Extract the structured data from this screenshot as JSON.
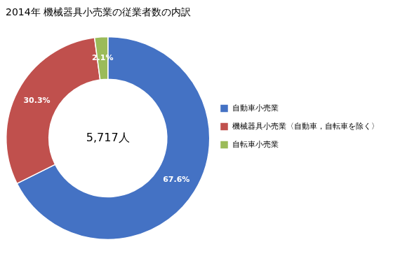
{
  "chart_data": {
    "type": "doughnut",
    "title": "2014年 機械器具小売業の従業者数の内訳",
    "categories": [
      "自動車小売業",
      "機械器具小売業〈自動車，自転車を除く〉",
      "自転車小売業"
    ],
    "values": [
      67.6,
      30.3,
      2.1
    ],
    "value_labels": [
      "67.6%",
      "30.3%",
      "2.1%"
    ],
    "colors": [
      "#4472C4",
      "#C0504D",
      "#9BBB59"
    ],
    "annotations": [
      "5,717人"
    ],
    "data_labels": true,
    "legend": "right"
  }
}
